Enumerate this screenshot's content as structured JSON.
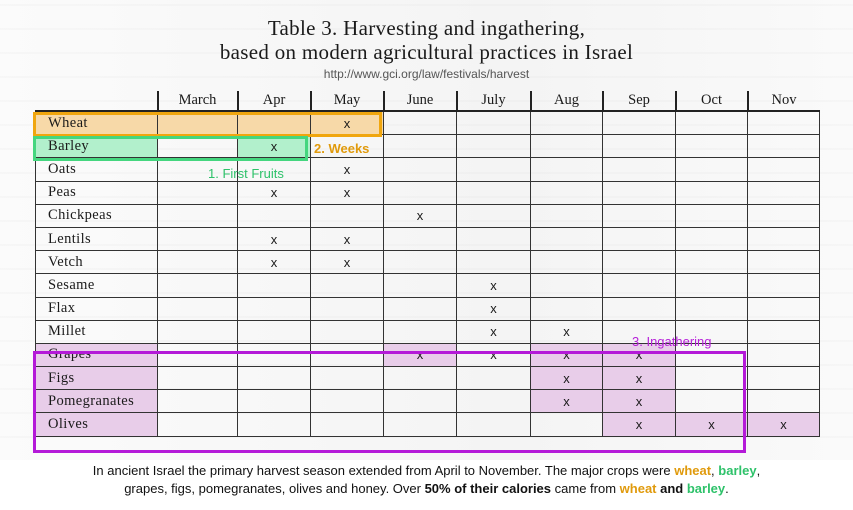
{
  "title": {
    "line1": "Table 3.   Harvesting and ingathering,",
    "line2": "based on modern agricultural practices in Israel",
    "url": "http://www.gci.org/law/festivals/harvest"
  },
  "table": {
    "months": [
      "March",
      "Apr",
      "May",
      "June",
      "July",
      "Aug",
      "Sep",
      "Oct",
      "Nov"
    ],
    "rows": [
      {
        "crop": "Wheat",
        "cells": [
          "",
          "",
          "x",
          "",
          "",
          "",
          "",
          "",
          ""
        ]
      },
      {
        "crop": "Barley",
        "cells": [
          "",
          "x",
          "",
          "",
          "",
          "",
          "",
          "",
          ""
        ]
      },
      {
        "crop": "Oats",
        "cells": [
          "",
          "",
          "x",
          "",
          "",
          "",
          "",
          "",
          ""
        ]
      },
      {
        "crop": "Peas",
        "cells": [
          "",
          "x",
          "x",
          "",
          "",
          "",
          "",
          "",
          ""
        ]
      },
      {
        "crop": "Chickpeas",
        "cells": [
          "",
          "",
          "",
          "x",
          "",
          "",
          "",
          "",
          ""
        ]
      },
      {
        "crop": "Lentils",
        "cells": [
          "",
          "x",
          "x",
          "",
          "",
          "",
          "",
          "",
          ""
        ]
      },
      {
        "crop": "Vetch",
        "cells": [
          "",
          "x",
          "x",
          "",
          "",
          "",
          "",
          "",
          ""
        ]
      },
      {
        "crop": "Sesame",
        "cells": [
          "",
          "",
          "",
          "",
          "x",
          "",
          "",
          "",
          ""
        ]
      },
      {
        "crop": "Flax",
        "cells": [
          "",
          "",
          "",
          "",
          "x",
          "",
          "",
          "",
          ""
        ]
      },
      {
        "crop": "Millet",
        "cells": [
          "",
          "",
          "",
          "",
          "x",
          "x",
          "",
          "",
          ""
        ]
      },
      {
        "crop": "Grapes",
        "cells": [
          "",
          "",
          "",
          "x",
          "x",
          "x",
          "x",
          "",
          ""
        ]
      },
      {
        "crop": "Figs",
        "cells": [
          "",
          "",
          "",
          "",
          "",
          "x",
          "x",
          "",
          ""
        ]
      },
      {
        "crop": "Pomegranates",
        "cells": [
          "",
          "",
          "",
          "",
          "",
          "x",
          "x",
          "",
          ""
        ]
      },
      {
        "crop": "Olives",
        "cells": [
          "",
          "",
          "",
          "",
          "",
          "",
          "x",
          "x",
          "x"
        ]
      }
    ]
  },
  "annotations": {
    "first_fruits": "1. First Fruits",
    "weeks": "2. Weeks",
    "ingathering": "3. Ingathering"
  },
  "caption": {
    "t1": "In ancient Israel the primary harvest season extended from April to November. The major crops were ",
    "wheat": "wheat",
    "comma": ", ",
    "barley": "barley",
    "t2": ",",
    "t3": "grapes, figs, pomegranates, olives and honey.  Over ",
    "bold": "50% of their calories",
    "t4": " came from ",
    "wheat2": "wheat",
    "and": " and ",
    "barley2": "barley",
    "end": "."
  },
  "colors": {
    "wheat": "#f0a60e",
    "barley": "#2ec26a",
    "ingathering": "#b61fd9"
  }
}
